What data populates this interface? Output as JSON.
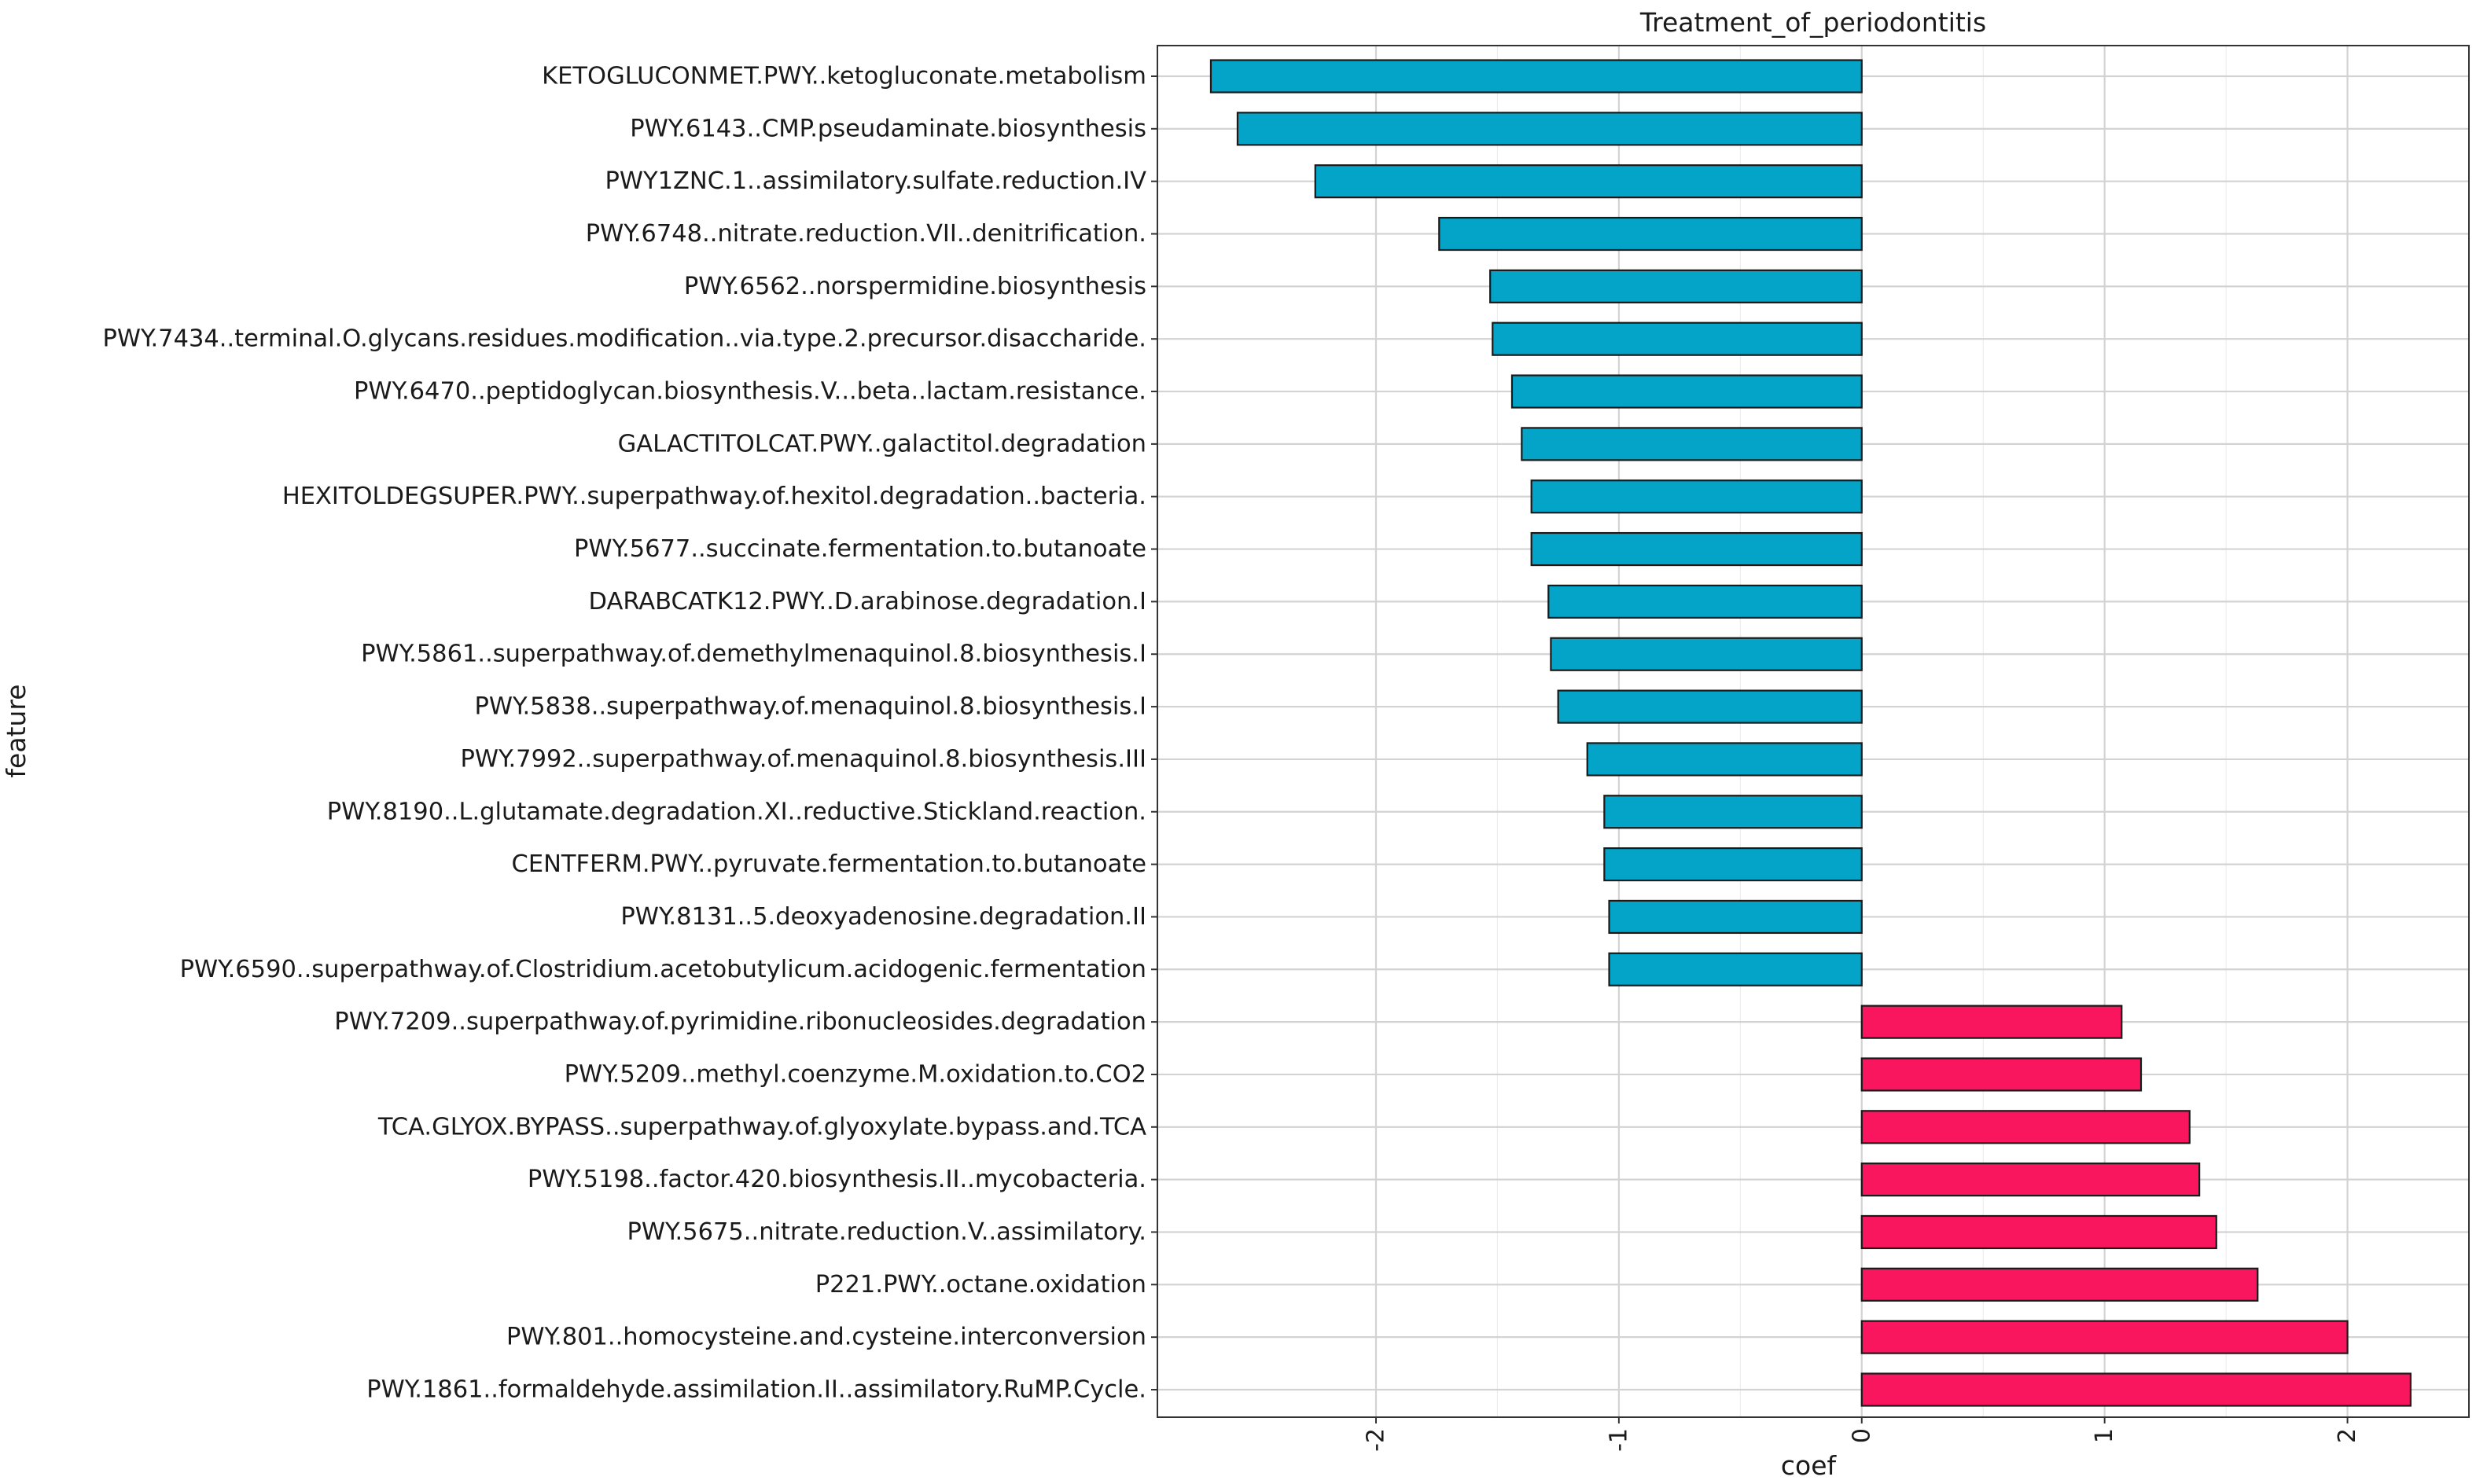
{
  "chart_data": {
    "type": "bar",
    "orientation": "horizontal",
    "title": "Treatment_of_periodontitis",
    "xlabel": "coef",
    "ylabel": "feature",
    "xlim": [
      -2.9,
      2.5
    ],
    "xticks": [
      -2,
      -1,
      0,
      1,
      2
    ],
    "xtick_labels": [
      "-2",
      "-1",
      "0",
      "1",
      "2"
    ],
    "grid": true,
    "colors": {
      "negative": "#04a3c8",
      "positive": "#fa165e",
      "edge": "#1a1a1a"
    },
    "categories": [
      "KETOGLUCONMET.PWY..ketogluconate.metabolism",
      "PWY.6143..CMP.pseudaminate.biosynthesis",
      "PWY1ZNC.1..assimilatory.sulfate.reduction.IV",
      "PWY.6748..nitrate.reduction.VII..denitrification.",
      "PWY.6562..norspermidine.biosynthesis",
      "PWY.7434..terminal.O.glycans.residues.modification..via.type.2.precursor.disaccharide.",
      "PWY.6470..peptidoglycan.biosynthesis.V...beta..lactam.resistance.",
      "GALACTITOLCAT.PWY..galactitol.degradation",
      "HEXITOLDEGSUPER.PWY..superpathway.of.hexitol.degradation..bacteria.",
      "PWY.5677..succinate.fermentation.to.butanoate",
      "DARABCATK12.PWY..D.arabinose.degradation.I",
      "PWY.5861..superpathway.of.demethylmenaquinol.8.biosynthesis.I",
      "PWY.5838..superpathway.of.menaquinol.8.biosynthesis.I",
      "PWY.7992..superpathway.of.menaquinol.8.biosynthesis.III",
      "PWY.8190..L.glutamate.degradation.XI..reductive.Stickland.reaction.",
      "CENTFERM.PWY..pyruvate.fermentation.to.butanoate",
      "PWY.8131..5.deoxyadenosine.degradation.II",
      "PWY.6590..superpathway.of.Clostridium.acetobutylicum.acidogenic.fermentation",
      "PWY.7209..superpathway.of.pyrimidine.ribonucleosides.degradation",
      "PWY.5209..methyl.coenzyme.M.oxidation.to.CO2",
      "TCA.GLYOX.BYPASS..superpathway.of.glyoxylate.bypass.and.TCA",
      "PWY.5198..factor.420.biosynthesis.II..mycobacteria.",
      "PWY.5675..nitrate.reduction.V..assimilatory.",
      "P221.PWY..octane.oxidation",
      "PWY.801..homocysteine.and.cysteine.interconversion",
      "PWY.1861..formaldehyde.assimilation.II..assimilatory.RuMP.Cycle."
    ],
    "values": [
      -2.68,
      -2.57,
      -2.25,
      -1.74,
      -1.53,
      -1.52,
      -1.44,
      -1.4,
      -1.36,
      -1.36,
      -1.29,
      -1.28,
      -1.25,
      -1.13,
      -1.06,
      -1.06,
      -1.04,
      -1.04,
      1.07,
      1.15,
      1.35,
      1.39,
      1.46,
      1.63,
      2.0,
      2.26
    ]
  }
}
